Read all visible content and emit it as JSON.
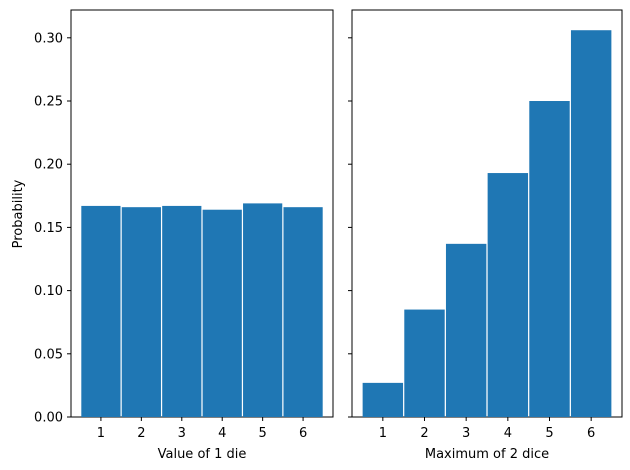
{
  "chart_data": [
    {
      "type": "bar",
      "xlabel": "Value of 1 die",
      "ylabel": "Probability",
      "categories": [
        "1",
        "2",
        "3",
        "4",
        "5",
        "6"
      ],
      "values": [
        0.167,
        0.166,
        0.167,
        0.164,
        0.169,
        0.166
      ],
      "ylim": [
        0,
        0.322
      ],
      "yticks": [
        "0.00",
        "0.05",
        "0.10",
        "0.15",
        "0.20",
        "0.25",
        "0.30"
      ],
      "color": "#1f77b4",
      "grid": false,
      "legend": "none"
    },
    {
      "type": "bar",
      "xlabel": "Maximum of 2 dice",
      "ylabel": "",
      "categories": [
        "1",
        "2",
        "3",
        "4",
        "5",
        "6"
      ],
      "values": [
        0.027,
        0.085,
        0.137,
        0.193,
        0.25,
        0.306
      ],
      "ylim": [
        0,
        0.322
      ],
      "yticks": [],
      "sharey": true,
      "color": "#1f77b4",
      "grid": false,
      "legend": "none"
    }
  ]
}
